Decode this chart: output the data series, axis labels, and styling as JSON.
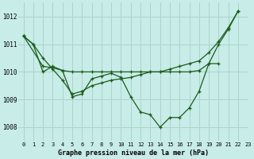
{
  "title": "Graphe pression niveau de la mer (hPa)",
  "background_color": "#c8ece8",
  "grid_color": "#aad4cc",
  "line_color": "#1a5c1a",
  "xlim": [
    -0.5,
    23
  ],
  "ylim": [
    1007.5,
    1012.5
  ],
  "xticks": [
    0,
    1,
    2,
    3,
    4,
    5,
    6,
    7,
    8,
    9,
    10,
    11,
    12,
    13,
    14,
    15,
    16,
    17,
    18,
    19,
    20,
    21,
    22,
    23
  ],
  "yticks": [
    1008,
    1009,
    1010,
    1011,
    1012
  ],
  "series1_x": [
    0,
    1,
    2,
    3,
    4,
    5,
    6,
    7,
    8,
    9,
    10,
    11,
    12,
    13,
    14,
    15,
    16,
    17,
    18,
    19,
    20,
    21,
    22
  ],
  "series1_y": [
    1011.3,
    1011.0,
    1010.0,
    1010.2,
    1010.05,
    1009.1,
    1009.2,
    1009.75,
    1009.85,
    1009.95,
    1009.8,
    1009.1,
    1008.55,
    1008.45,
    1008.0,
    1008.35,
    1008.35,
    1008.7,
    1009.3,
    1010.3,
    1011.0,
    1011.55,
    1012.2
  ],
  "series2_x": [
    0,
    2,
    3,
    4,
    5,
    6,
    7,
    8,
    9,
    10,
    11,
    12,
    13,
    14,
    15,
    16,
    17,
    18,
    19,
    20
  ],
  "series2_y": [
    1011.3,
    1010.2,
    1010.15,
    1010.05,
    1010.0,
    1010.0,
    1010.0,
    1010.0,
    1010.0,
    1010.0,
    1010.0,
    1010.0,
    1010.0,
    1010.0,
    1010.0,
    1010.0,
    1010.0,
    1010.05,
    1010.3,
    1010.3
  ],
  "series3_x": [
    0,
    1,
    2,
    3,
    4,
    5,
    6,
    7,
    8,
    9,
    10,
    11,
    12,
    13,
    14,
    15,
    16,
    17,
    18,
    19,
    20,
    21,
    22
  ],
  "series3_y": [
    1011.3,
    1011.0,
    1010.5,
    1010.1,
    1009.7,
    1009.2,
    1009.3,
    1009.5,
    1009.6,
    1009.7,
    1009.75,
    1009.8,
    1009.9,
    1010.0,
    1010.0,
    1010.1,
    1010.2,
    1010.3,
    1010.4,
    1010.7,
    1011.1,
    1011.6,
    1012.2
  ]
}
